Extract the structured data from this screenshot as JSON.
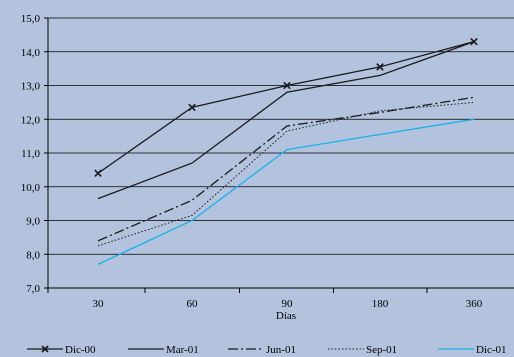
{
  "chart_data": {
    "type": "line",
    "title": "",
    "xlabel": "Días",
    "ylabel": "",
    "categories": [
      "30",
      "60",
      "90",
      "180",
      "360"
    ],
    "ylim": [
      7.0,
      15.0
    ],
    "yticks": [
      "7,0",
      "8,0",
      "9,0",
      "10,0",
      "11,0",
      "12,0",
      "13,0",
      "14,0",
      "15,0"
    ],
    "grid": "horizontal",
    "legend": "bottom",
    "series": [
      {
        "name": "Dic-00",
        "values": [
          10.4,
          12.35,
          13.0,
          13.55,
          14.3
        ],
        "color": "#1a1a1a",
        "dash": "solid",
        "marker": "x"
      },
      {
        "name": "Mar-01",
        "values": [
          9.65,
          10.7,
          12.8,
          13.3,
          14.3
        ],
        "color": "#1a1a1a",
        "dash": "solid",
        "marker": "none"
      },
      {
        "name": "Jun-01",
        "values": [
          8.4,
          9.6,
          11.8,
          12.2,
          12.65
        ],
        "color": "#1a1a1a",
        "dash": "dashdot",
        "marker": "none"
      },
      {
        "name": "Sep-01",
        "values": [
          8.25,
          9.15,
          11.65,
          12.25,
          12.5
        ],
        "color": "#1a1a1a",
        "dash": "dotted",
        "marker": "none"
      },
      {
        "name": "Dic-01",
        "values": [
          7.7,
          9.0,
          11.1,
          11.55,
          12.0
        ],
        "color": "#1ab0ec",
        "dash": "solid",
        "marker": "none"
      }
    ]
  }
}
